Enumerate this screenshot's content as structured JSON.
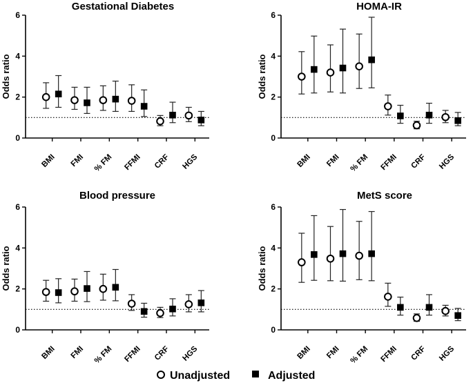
{
  "chart_data": [
    {
      "type": "scatter",
      "title": "Gestational Diabetes",
      "ylabel": "Odds ratio",
      "ylim": [
        0,
        6
      ],
      "yticks": [
        "0",
        "2",
        "4",
        "6"
      ],
      "reference_line": 1,
      "categories": [
        "BMI",
        "FMI",
        "% FM",
        "FFMI",
        "CRF",
        "HGS"
      ],
      "series": [
        {
          "name": "Unadjusted",
          "values": [
            2.0,
            1.85,
            1.85,
            1.82,
            0.82,
            1.1
          ],
          "lower": [
            1.45,
            1.4,
            1.35,
            1.3,
            0.6,
            0.8
          ],
          "upper": [
            2.7,
            2.48,
            2.55,
            2.6,
            1.1,
            1.5
          ]
        },
        {
          "name": "Adjusted",
          "values": [
            2.15,
            1.72,
            1.9,
            1.55,
            1.12,
            0.88
          ],
          "lower": [
            1.5,
            1.2,
            1.3,
            1.05,
            0.75,
            0.6
          ],
          "upper": [
            3.05,
            2.48,
            2.78,
            2.35,
            1.75,
            1.3
          ]
        }
      ]
    },
    {
      "type": "scatter",
      "title": "HOMA-IR",
      "ylabel": "Odds ratio",
      "ylim": [
        0,
        6
      ],
      "yticks": [
        "0",
        "2",
        "4",
        "6"
      ],
      "reference_line": 1,
      "categories": [
        "BMI",
        "FMI",
        "% FM",
        "FFMI",
        "CRF",
        "HGS"
      ],
      "series": [
        {
          "name": "Unadjusted",
          "values": [
            3.0,
            3.2,
            3.5,
            1.55,
            0.62,
            1.02
          ],
          "lower": [
            2.15,
            2.25,
            2.42,
            1.12,
            0.45,
            0.75
          ],
          "upper": [
            4.22,
            4.55,
            5.08,
            2.1,
            0.82,
            1.35
          ]
        },
        {
          "name": "Adjusted",
          "values": [
            3.35,
            3.42,
            3.82,
            1.08,
            1.12,
            0.85
          ],
          "lower": [
            2.2,
            2.2,
            2.45,
            0.72,
            0.72,
            0.6
          ],
          "upper": [
            4.98,
            5.32,
            5.9,
            1.6,
            1.7,
            1.25
          ]
        }
      ]
    },
    {
      "type": "scatter",
      "title": "Blood pressure",
      "ylabel": "Odds ratio",
      "ylim": [
        0,
        6
      ],
      "yticks": [
        "0",
        "2",
        "4",
        "6"
      ],
      "reference_line": 1,
      "categories": [
        "BMI",
        "FMI",
        "% FM",
        "FFMI",
        "CRF",
        "HGS"
      ],
      "series": [
        {
          "name": "Unadjusted",
          "values": [
            1.85,
            1.88,
            2.0,
            1.28,
            0.82,
            1.25
          ],
          "lower": [
            1.4,
            1.4,
            1.45,
            0.95,
            0.6,
            0.88
          ],
          "upper": [
            2.42,
            2.48,
            2.72,
            1.72,
            1.1,
            1.72
          ]
        },
        {
          "name": "Adjusted",
          "values": [
            1.82,
            2.02,
            2.08,
            0.9,
            1.02,
            1.32
          ],
          "lower": [
            1.32,
            1.38,
            1.42,
            0.62,
            0.68,
            0.88
          ],
          "upper": [
            2.5,
            2.85,
            2.95,
            1.3,
            1.52,
            1.92
          ]
        }
      ]
    },
    {
      "type": "scatter",
      "title": "MetS score",
      "ylabel": "Odds ratio",
      "ylim": [
        0,
        6
      ],
      "yticks": [
        "0",
        "2",
        "4",
        "6"
      ],
      "reference_line": 1,
      "categories": [
        "BMI",
        "FMI",
        "% FM",
        "FFMI",
        "CRF",
        "HGS"
      ],
      "series": [
        {
          "name": "Unadjusted",
          "values": [
            3.3,
            3.48,
            3.62,
            1.62,
            0.58,
            0.92
          ],
          "lower": [
            2.32,
            2.4,
            2.45,
            1.15,
            0.42,
            0.68
          ],
          "upper": [
            4.72,
            5.05,
            5.3,
            2.28,
            0.78,
            1.2
          ]
        },
        {
          "name": "Adjusted",
          "values": [
            3.68,
            3.72,
            3.72,
            1.1,
            1.1,
            0.7
          ],
          "lower": [
            2.42,
            2.38,
            2.4,
            0.72,
            0.72,
            0.45
          ],
          "upper": [
            5.58,
            5.88,
            5.78,
            1.6,
            1.72,
            1.05
          ]
        }
      ]
    }
  ],
  "legend": {
    "unadjusted": "Unadjusted",
    "adjusted": "Adjusted"
  }
}
